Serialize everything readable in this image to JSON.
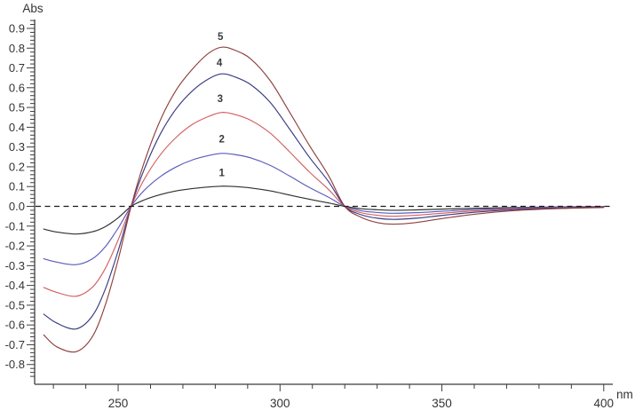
{
  "page": {
    "background": "#ffffff"
  },
  "chart_data": {
    "type": "line",
    "title": "",
    "xlabel": "nm",
    "ylabel": "Abs",
    "x_range": [
      224.2,
      402.5
    ],
    "y_range": [
      -0.86,
      0.94
    ],
    "x_major_ticks": [
      250,
      300,
      350,
      400
    ],
    "x_minor_start": 230,
    "x_minor_step": 10,
    "x_minor_end": 400,
    "y_major_start": -0.8,
    "y_major_step": 0.1,
    "y_major_end": 0.9,
    "y_minor_step": 0.02,
    "grid": false,
    "legend_position": "inline-numbered-labels-above-peaks",
    "axis_color": "#3c3c3c",
    "label_color": "#333333",
    "zero_line": {
      "style": "dashed",
      "color": "#1a1a1a",
      "value": 0
    },
    "isosbestic_points_nm": [
      254,
      320
    ],
    "peak_nm": 282,
    "trough_nm": 237,
    "series": [
      {
        "name": "1",
        "color": "#303030",
        "label": "1",
        "label_pos": {
          "nm": 282,
          "abs": 0.17
        },
        "points": [
          [
            227,
            -0.115
          ],
          [
            231,
            -0.13
          ],
          [
            237,
            -0.14
          ],
          [
            242,
            -0.129
          ],
          [
            246,
            -0.103
          ],
          [
            250,
            -0.058
          ],
          [
            254,
            0.0
          ],
          [
            258,
            0.032
          ],
          [
            263,
            0.059
          ],
          [
            268,
            0.078
          ],
          [
            273,
            0.09
          ],
          [
            278,
            0.098
          ],
          [
            282,
            0.102
          ],
          [
            286,
            0.1
          ],
          [
            291,
            0.093
          ],
          [
            297,
            0.078
          ],
          [
            303,
            0.057
          ],
          [
            309,
            0.036
          ],
          [
            315,
            0.017
          ],
          [
            320,
            0.0
          ],
          [
            325,
            -0.012
          ],
          [
            330,
            -0.017
          ],
          [
            335,
            -0.02
          ],
          [
            342,
            -0.018
          ],
          [
            350,
            -0.014
          ],
          [
            360,
            -0.01
          ],
          [
            372,
            -0.006
          ],
          [
            385,
            -0.003
          ],
          [
            400,
            -0.001
          ]
        ]
      },
      {
        "name": "2",
        "color": "#5b5cba",
        "label": "2",
        "label_pos": {
          "nm": 282,
          "abs": 0.34
        },
        "points": [
          [
            227,
            -0.265
          ],
          [
            231,
            -0.282
          ],
          [
            237,
            -0.295
          ],
          [
            242,
            -0.266
          ],
          [
            246,
            -0.205
          ],
          [
            250,
            -0.11
          ],
          [
            254,
            0.0
          ],
          [
            258,
            0.08
          ],
          [
            263,
            0.15
          ],
          [
            268,
            0.2
          ],
          [
            273,
            0.235
          ],
          [
            278,
            0.257
          ],
          [
            282,
            0.268
          ],
          [
            286,
            0.262
          ],
          [
            291,
            0.245
          ],
          [
            297,
            0.207
          ],
          [
            303,
            0.153
          ],
          [
            309,
            0.096
          ],
          [
            315,
            0.046
          ],
          [
            320,
            0.0
          ],
          [
            325,
            -0.022
          ],
          [
            330,
            -0.031
          ],
          [
            335,
            -0.035
          ],
          [
            342,
            -0.032
          ],
          [
            350,
            -0.025
          ],
          [
            360,
            -0.016
          ],
          [
            372,
            -0.009
          ],
          [
            385,
            -0.005
          ],
          [
            400,
            -0.002
          ]
        ]
      },
      {
        "name": "3",
        "color": "#d4605f",
        "label": "3",
        "label_pos": {
          "nm": 281.5,
          "abs": 0.545
        },
        "points": [
          [
            227,
            -0.41
          ],
          [
            231,
            -0.435
          ],
          [
            237,
            -0.455
          ],
          [
            242,
            -0.41
          ],
          [
            246,
            -0.315
          ],
          [
            250,
            -0.17
          ],
          [
            254,
            0.0
          ],
          [
            258,
            0.135
          ],
          [
            263,
            0.26
          ],
          [
            268,
            0.35
          ],
          [
            273,
            0.415
          ],
          [
            278,
            0.455
          ],
          [
            282,
            0.475
          ],
          [
            286,
            0.465
          ],
          [
            291,
            0.435
          ],
          [
            297,
            0.37
          ],
          [
            303,
            0.275
          ],
          [
            309,
            0.175
          ],
          [
            315,
            0.085
          ],
          [
            320,
            0.0
          ],
          [
            325,
            -0.032
          ],
          [
            330,
            -0.045
          ],
          [
            335,
            -0.05
          ],
          [
            342,
            -0.045
          ],
          [
            350,
            -0.035
          ],
          [
            360,
            -0.023
          ],
          [
            372,
            -0.013
          ],
          [
            385,
            -0.007
          ],
          [
            400,
            -0.003
          ]
        ]
      },
      {
        "name": "4",
        "color": "#393b82",
        "label": "4",
        "label_pos": {
          "nm": 281.3,
          "abs": 0.727
        },
        "points": [
          [
            227,
            -0.545
          ],
          [
            231,
            -0.59
          ],
          [
            237,
            -0.62
          ],
          [
            242,
            -0.555
          ],
          [
            246,
            -0.42
          ],
          [
            250,
            -0.225
          ],
          [
            254,
            0.0
          ],
          [
            258,
            0.185
          ],
          [
            263,
            0.365
          ],
          [
            268,
            0.495
          ],
          [
            273,
            0.585
          ],
          [
            278,
            0.645
          ],
          [
            282,
            0.67
          ],
          [
            286,
            0.655
          ],
          [
            291,
            0.615
          ],
          [
            297,
            0.525
          ],
          [
            303,
            0.39
          ],
          [
            309,
            0.25
          ],
          [
            315,
            0.125
          ],
          [
            320,
            0.0
          ],
          [
            325,
            -0.042
          ],
          [
            330,
            -0.06
          ],
          [
            335,
            -0.066
          ],
          [
            342,
            -0.06
          ],
          [
            350,
            -0.046
          ],
          [
            360,
            -0.03
          ],
          [
            372,
            -0.017
          ],
          [
            385,
            -0.009
          ],
          [
            400,
            -0.004
          ]
        ]
      },
      {
        "name": "5",
        "color": "#8e413e",
        "label": "5",
        "label_pos": {
          "nm": 281.6,
          "abs": 0.86
        },
        "points": [
          [
            227,
            -0.65
          ],
          [
            231,
            -0.71
          ],
          [
            237,
            -0.735
          ],
          [
            242,
            -0.66
          ],
          [
            246,
            -0.5
          ],
          [
            250,
            -0.27
          ],
          [
            254,
            0.0
          ],
          [
            258,
            0.22
          ],
          [
            263,
            0.435
          ],
          [
            268,
            0.59
          ],
          [
            273,
            0.695
          ],
          [
            278,
            0.775
          ],
          [
            282,
            0.805
          ],
          [
            286,
            0.79
          ],
          [
            291,
            0.745
          ],
          [
            297,
            0.635
          ],
          [
            303,
            0.475
          ],
          [
            309,
            0.31
          ],
          [
            315,
            0.155
          ],
          [
            320,
            0.0
          ],
          [
            325,
            -0.055
          ],
          [
            330,
            -0.082
          ],
          [
            335,
            -0.09
          ],
          [
            342,
            -0.082
          ],
          [
            350,
            -0.062
          ],
          [
            360,
            -0.04
          ],
          [
            372,
            -0.022
          ],
          [
            385,
            -0.012
          ],
          [
            400,
            -0.006
          ]
        ]
      }
    ]
  }
}
